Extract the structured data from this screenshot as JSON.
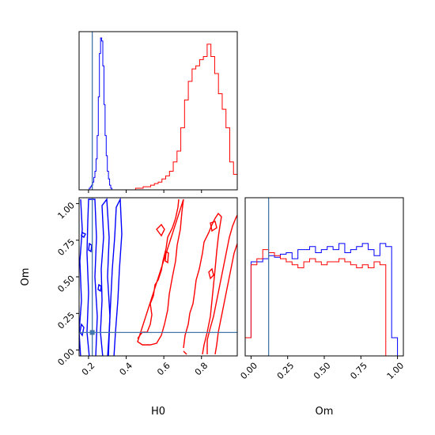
{
  "chart_data": {
    "type": "corner",
    "xlabel_h0": "H0",
    "ylabel_om": "Om",
    "xlabel_om": "Om",
    "truth": {
      "H0": 0.22,
      "Om": 0.12
    },
    "truth_color": "#4477aa",
    "series_colors": [
      "#0000ff",
      "#ff0000"
    ],
    "h0_axis": {
      "range": [
        0.15,
        0.99
      ],
      "ticks": [
        0.2,
        0.4,
        0.6,
        0.8
      ],
      "tick_labels": [
        "0.2",
        "0.4",
        "0.6",
        "0.8"
      ]
    },
    "om_axis": {
      "range": [
        -0.04,
        1.04
      ],
      "ticks": [
        0.0,
        0.25,
        0.5,
        0.75,
        1.0
      ],
      "tick_labels": [
        "0.00",
        "0.25",
        "0.50",
        "0.75",
        "1.00"
      ]
    },
    "hist_h0": [
      {
        "name": "",
        "edges_start": 0.15,
        "bin_width": 0.006,
        "counts": [
          0,
          0,
          0,
          0,
          0,
          0,
          0,
          0,
          0,
          1,
          2,
          3,
          5,
          8,
          12,
          20,
          35,
          60,
          88,
          98,
          96,
          80,
          55,
          35,
          22,
          12,
          7,
          3,
          1,
          0
        ]
      },
      {
        "name": "",
        "edges_start": 0.45,
        "bin_width": 0.02,
        "counts": [
          1,
          1,
          2,
          2,
          3,
          4,
          5,
          7,
          9,
          12,
          18,
          25,
          40,
          58,
          70,
          78,
          80,
          84,
          86,
          94,
          86,
          75,
          62,
          52,
          40,
          18,
          10
        ]
      }
    ],
    "hist_om": [
      {
        "name": "",
        "edges_start": -0.04,
        "bin_width": 0.04,
        "counts": [
          12,
          62,
          62,
          64,
          66,
          65,
          67,
          68,
          64,
          70,
          70,
          72,
          68,
          70,
          72,
          70,
          74,
          68,
          70,
          72,
          74,
          70,
          66,
          74,
          72,
          12
        ]
      },
      {
        "name": "",
        "edges_start": -0.04,
        "bin_width": 0.04,
        "counts": [
          12,
          60,
          64,
          70,
          68,
          66,
          64,
          62,
          60,
          58,
          62,
          64,
          62,
          60,
          62,
          62,
          64,
          62,
          60,
          58,
          60,
          58,
          62,
          60,
          0,
          0
        ]
      }
    ]
  }
}
